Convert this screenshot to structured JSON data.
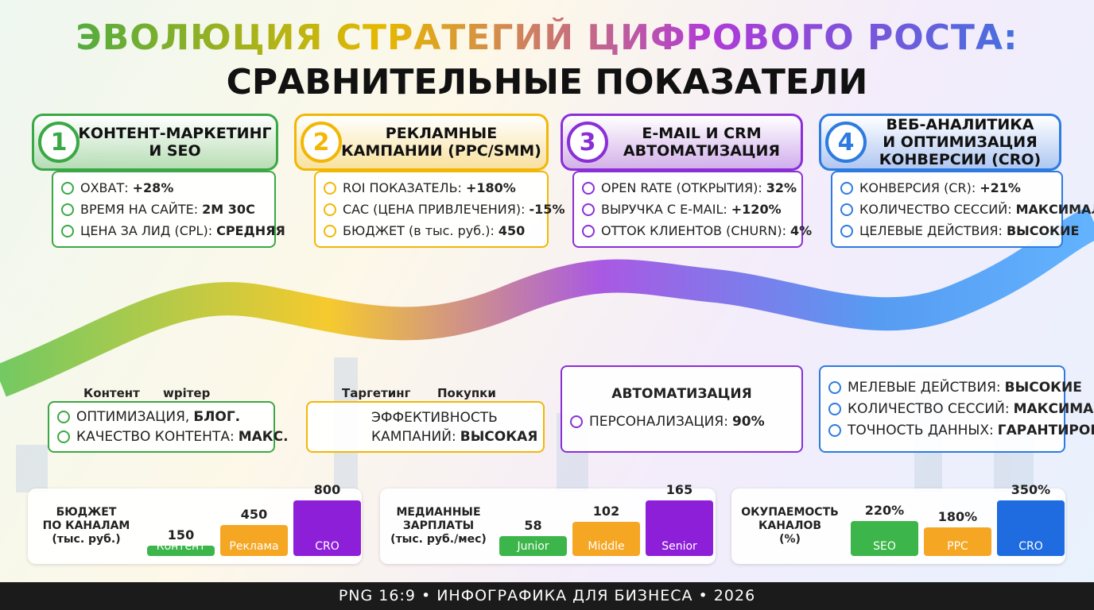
{
  "title": {
    "line1": "ЭВОЛЮЦИЯ СТРАТЕГИЙ ЦИФРОВОГО РОСТА:",
    "line2": "СРАВНИТЕЛЬНЫЕ ПОКАЗАТЕЛИ"
  },
  "stages": [
    {
      "number": 1,
      "title": [
        "КОНТЕНТ-МАРКЕТИНГ",
        "И SEO"
      ],
      "color": "#3aa845",
      "metrics": [
        {
          "label": "ОХВАТ:",
          "value": "+28%"
        },
        {
          "label": "ВРЕМЯ НА САЙТЕ:",
          "value": "2М 30С"
        },
        {
          "label": "ЦЕНА ЗА ЛИД (CPL):",
          "value": "СРЕДНЯЯ"
        }
      ],
      "captions": [
        "Контент",
        "wрiтер"
      ],
      "notes": {
        "items": [
          {
            "label": "ОПТИМИЗАЦИЯ,",
            "value": "БЛОГ."
          },
          {
            "label": "КАЧЕСТВО КОНТЕНТА:",
            "value": "МАКС."
          }
        ]
      }
    },
    {
      "number": 2,
      "title": [
        "РЕКЛАМНЫЕ",
        "КАМПАНИИ (PPC/SMM)"
      ],
      "color": "#f2b705",
      "metrics": [
        {
          "label": "ROI ПОКАЗАТЕЛЬ:",
          "value": "+180%"
        },
        {
          "label": "CAC (ЦЕНА ПРИВЛЕЧЕНИЯ):",
          "value": "-15%"
        },
        {
          "label": "БЮДЖЕТ (в тыс. руб.):",
          "value": "450"
        }
      ],
      "captions": [
        "Таргетинг",
        "Покупки"
      ],
      "notes": {
        "items": [
          {
            "label": "ЭФФЕКТИВНОСТЬ КАМПАНИЙ:",
            "value": "ВЫСОКАЯ"
          }
        ]
      }
    },
    {
      "number": 3,
      "title": [
        "E-MAIL И CRM",
        "АВТОМАТИЗАЦИЯ"
      ],
      "color": "#8a2fd6",
      "metrics": [
        {
          "label": "OPEN RATE (ОТКРЫТИЯ):",
          "value": "32%"
        },
        {
          "label": "ВЫРУЧКА С E-MAIL:",
          "value": "+120%"
        },
        {
          "label": "ОТТОК КЛИЕНТОВ (CHURN):",
          "value": "4%"
        }
      ],
      "captions": [],
      "notes": {
        "heading": "АВТОМАТИЗАЦИЯ",
        "items": [
          {
            "label": "ПЕРСОНАЛИЗАЦИЯ:",
            "value": "90%"
          }
        ]
      }
    },
    {
      "number": 4,
      "title": [
        "ВЕБ-АНАЛИТИКА",
        "И ОПТИМИЗАЦИЯ",
        "КОНВЕРСИИ (CRO)"
      ],
      "color": "#2d7be0",
      "metrics": [
        {
          "label": "КОНВЕРСИЯ (CR):",
          "value": "+21%"
        },
        {
          "label": "КОЛИЧЕСТВО СЕССИЙ:",
          "value": "МАКСИМАЛЬН."
        },
        {
          "label": "ЦЕЛЕВЫЕ ДЕЙСТВИЯ:",
          "value": "ВЫСОКИЕ"
        }
      ],
      "captions": [],
      "notes": {
        "items": [
          {
            "label": "МЕЛЕВЫЕ ДЕЙСТВИЯ:",
            "value": "ВЫСОКИЕ"
          },
          {
            "label": "КОЛИЧЕСТВО СЕССИЙ:",
            "value": "МАКСИМАЛЬН."
          },
          {
            "label": "ТОЧНОСТЬ ДАННЫХ:",
            "value": "ГАРАНТИРОВ."
          }
        ]
      }
    }
  ],
  "charts": [
    {
      "type": "bar",
      "title": [
        "БЮДЖЕТ",
        "ПО КАНАЛАМ",
        "(тыс. руб.)"
      ],
      "categories": [
        "Контент",
        "Реклама",
        "CRO"
      ],
      "values": [
        150,
        450,
        800
      ],
      "colors": [
        "#3cb54a",
        "#f5a623",
        "#8e1fd8"
      ]
    },
    {
      "type": "bar",
      "title": [
        "МЕДИАННЫЕ",
        "ЗАРПЛАТЫ",
        "(тыс. руб./мес)"
      ],
      "categories": [
        "Junior",
        "Middle",
        "Senior"
      ],
      "values": [
        58,
        102,
        165
      ],
      "colors": [
        "#3cb54a",
        "#f5a623",
        "#8e1fd8"
      ]
    },
    {
      "type": "bar",
      "title": [
        "ОКУПАЕМОСТЬ",
        "КАНАЛОВ",
        "(%)"
      ],
      "categories": [
        "SEO",
        "PPC",
        "CRO"
      ],
      "values": [
        220,
        180,
        350
      ],
      "value_labels": [
        "220%",
        "180%",
        "350%"
      ],
      "colors": [
        "#3cb54a",
        "#f5a623",
        "#1f6be0"
      ]
    }
  ],
  "footer": "PNG 16:9 • ИНФОГРАФИКА ДЛЯ БИЗНЕСА • 2026"
}
